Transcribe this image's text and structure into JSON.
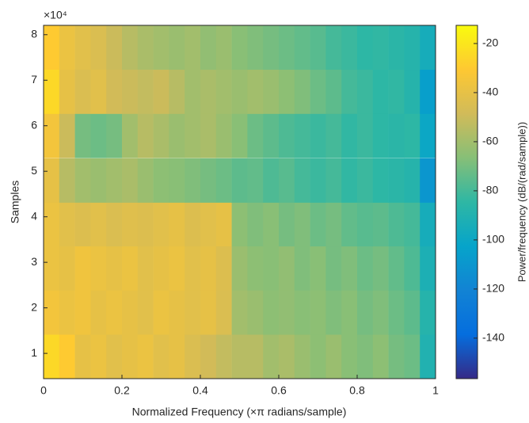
{
  "chart_data": {
    "type": "heatmap",
    "xlabel": "Normalized Frequency (×π radians/sample)",
    "ylabel": "Samples",
    "y_multiplier": "×10⁴",
    "colorbar_label": "Power/frequency (dB/(rad/sample))",
    "colormap": "parula",
    "xlim": [
      0,
      1
    ],
    "xticks": [
      0,
      0.2,
      0.4,
      0.6,
      0.8,
      1
    ],
    "ylim": [
      0.445,
      8.205
    ],
    "yticks": [
      1,
      2,
      3,
      4,
      5,
      6,
      7,
      8
    ],
    "clim": [
      -156.5,
      -12.6
    ],
    "cticks": [
      -20,
      -40,
      -60,
      -80,
      -100,
      -120,
      -140
    ],
    "x": [
      0.02,
      0.06,
      0.1,
      0.14,
      0.18,
      0.22,
      0.26,
      0.3,
      0.34,
      0.38,
      0.42,
      0.46,
      0.5,
      0.54,
      0.58,
      0.62,
      0.66,
      0.7,
      0.74,
      0.78,
      0.82,
      0.86,
      0.9,
      0.94,
      0.98
    ],
    "y": [
      0.93,
      1.9,
      2.87,
      3.84,
      4.8,
      5.78,
      6.75,
      7.72
    ],
    "z": [
      [
        -25,
        -30,
        -40,
        -38,
        -42,
        -40,
        -38,
        -42,
        -40,
        -45,
        -48,
        -52,
        -55,
        -55,
        -60,
        -58,
        -62,
        -65,
        -62,
        -66,
        -68,
        -65,
        -70,
        -72,
        -90
      ],
      [
        -35,
        -38,
        -36,
        -40,
        -38,
        -40,
        -42,
        -38,
        -40,
        -42,
        -40,
        -45,
        -60,
        -62,
        -65,
        -64,
        -66,
        -65,
        -68,
        -66,
        -70,
        -68,
        -72,
        -75,
        -88
      ],
      [
        -38,
        -40,
        -36,
        -38,
        -40,
        -38,
        -42,
        -40,
        -38,
        -42,
        -40,
        -44,
        -62,
        -65,
        -66,
        -64,
        -68,
        -66,
        -70,
        -68,
        -72,
        -70,
        -74,
        -78,
        -92
      ],
      [
        -38,
        -42,
        -44,
        -42,
        -45,
        -43,
        -44,
        -42,
        -40,
        -44,
        -42,
        -40,
        -65,
        -68,
        -66,
        -70,
        -68,
        -72,
        -70,
        -74,
        -76,
        -75,
        -78,
        -80,
        -95
      ],
      [
        -40,
        -55,
        -60,
        -62,
        -60,
        -58,
        -62,
        -65,
        -66,
        -68,
        -70,
        -72,
        -75,
        -74,
        -78,
        -76,
        -80,
        -82,
        -80,
        -84,
        -82,
        -85,
        -86,
        -88,
        -110
      ],
      [
        -35,
        -50,
        -70,
        -72,
        -70,
        -60,
        -55,
        -58,
        -62,
        -60,
        -58,
        -62,
        -66,
        -72,
        -75,
        -78,
        -80,
        -82,
        -80,
        -84,
        -82,
        -85,
        -86,
        -85,
        -100
      ],
      [
        -25,
        -40,
        -45,
        -42,
        -48,
        -50,
        -52,
        -50,
        -55,
        -60,
        -58,
        -60,
        -62,
        -60,
        -62,
        -65,
        -68,
        -72,
        -75,
        -80,
        -82,
        -85,
        -84,
        -88,
        -105
      ],
      [
        -30,
        -38,
        -42,
        -45,
        -50,
        -55,
        -58,
        -60,
        -62,
        -60,
        -64,
        -62,
        -66,
        -68,
        -70,
        -72,
        -74,
        -76,
        -80,
        -82,
        -85,
        -84,
        -86,
        -88,
        -95
      ]
    ]
  }
}
